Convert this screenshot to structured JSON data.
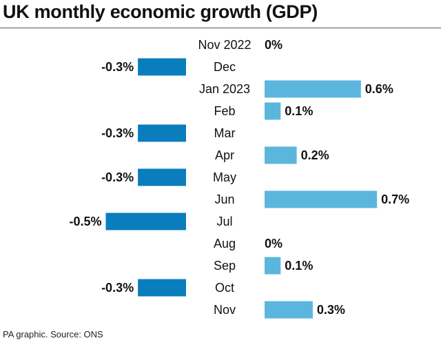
{
  "title": "UK monthly economic growth (GDP)",
  "footer": "PA graphic. Source: ONS",
  "chart_data": {
    "type": "bar",
    "orientation": "horizontal",
    "title": "UK monthly economic growth (GDP)",
    "categories": [
      "Nov 2022",
      "Dec",
      "Jan 2023",
      "Feb",
      "Mar",
      "Apr",
      "May",
      "Jun",
      "Jul",
      "Aug",
      "Sep",
      "Oct",
      "Nov"
    ],
    "values": [
      0,
      -0.3,
      0.6,
      0.1,
      -0.3,
      0.2,
      -0.3,
      0.7,
      -0.5,
      0,
      0.1,
      -0.3,
      0.3
    ],
    "data_labels": [
      "0%",
      "-0.3%",
      "0.6%",
      "0.1%",
      "-0.3%",
      "0.2%",
      "-0.3%",
      "0.7%",
      "-0.5%",
      "0%",
      "0.1%",
      "-0.3%",
      "0.3%"
    ],
    "unit": "%",
    "grid": false,
    "colors": {
      "negative": "#0a7dbd",
      "positive": "#5bb6de"
    }
  }
}
